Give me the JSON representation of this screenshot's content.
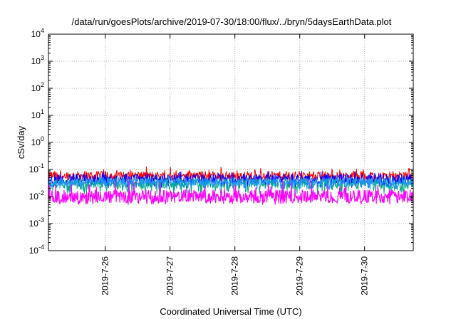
{
  "chart_data": {
    "type": "line",
    "title": "/data/run/goesPlots/archive/2019-07-30/18:00/flux/../bryn/5daysEarthData.plot",
    "xlabel": "Coordinated Universal Time (UTC)",
    "ylabel": "cSv/day",
    "yscale": "log",
    "ylim": [
      0.0001,
      10000
    ],
    "yticks": [
      {
        "base": "10",
        "exp": "4"
      },
      {
        "base": "10",
        "exp": "3"
      },
      {
        "base": "10",
        "exp": "2"
      },
      {
        "base": "10",
        "exp": "1"
      },
      {
        "base": "10",
        "exp": "0"
      },
      {
        "base": "10",
        "exp": "-1"
      },
      {
        "base": "10",
        "exp": "-2"
      },
      {
        "base": "10",
        "exp": "-3"
      },
      {
        "base": "10",
        "exp": "-4"
      }
    ],
    "xlim": [
      "2019-07-25 03:00",
      "2019-07-30 18:00"
    ],
    "xticks": [
      "2019-7-26",
      "2019-7-27",
      "2019-7-28",
      "2019-7-29",
      "2019-7-30"
    ],
    "grid": true,
    "series": [
      {
        "color": "#ff0000",
        "typical": 0.06,
        "min": 0.035,
        "max": 0.13
      },
      {
        "color": "#0000ff",
        "typical": 0.045,
        "min": 0.02,
        "max": 0.09
      },
      {
        "color": "#00aa88",
        "typical": 0.03,
        "min": 0.012,
        "max": 0.05
      },
      {
        "color": "#1e90ff",
        "typical": 0.035,
        "min": 0.018,
        "max": 0.06
      },
      {
        "color": "#ff00ff",
        "typical": 0.01,
        "min": 0.005,
        "max": 0.04
      }
    ]
  }
}
